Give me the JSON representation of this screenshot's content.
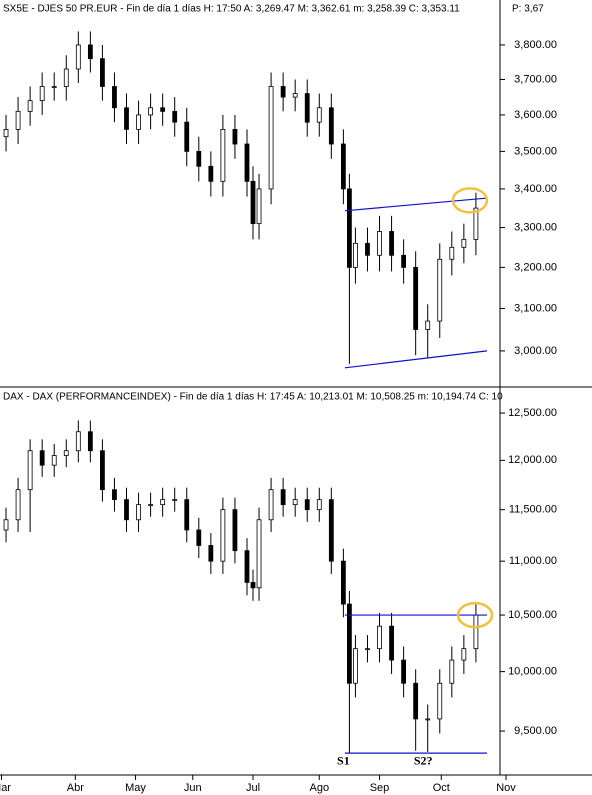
{
  "chart_data": [
    {
      "type": "candlestick",
      "header": "SX5E - DJES 50 PR.EUR - Fin de día 1 días  H: 17:50  A: 3,269.47  M: 3,362.61  m: 3,258.39  C: 3,353.11",
      "header_extra": "P: 3,67",
      "log_scale": true,
      "x": [
        2,
        6,
        10,
        14,
        18,
        22,
        26,
        30,
        34,
        38,
        42,
        46,
        50,
        54,
        58,
        62,
        66,
        70,
        74,
        78,
        82,
        84,
        86,
        90,
        94,
        98,
        102,
        106,
        110,
        114,
        116,
        118,
        122,
        126,
        130,
        134,
        138,
        142,
        146,
        150,
        154,
        158
      ],
      "open": [
        3540,
        3560,
        3610,
        3640,
        3680,
        3680,
        3730,
        3800,
        3760,
        3680,
        3620,
        3560,
        3600,
        3620,
        3610,
        3580,
        3500,
        3460,
        3420,
        3560,
        3520,
        3420,
        3310,
        3400,
        3680,
        3650,
        3660,
        3580,
        3620,
        3520,
        3400,
        3200,
        3260,
        3230,
        3290,
        3230,
        3200,
        3050,
        3070,
        3220,
        3250,
        3270
      ],
      "high": [
        3600,
        3650,
        3680,
        3720,
        3720,
        3770,
        3840,
        3840,
        3800,
        3720,
        3660,
        3640,
        3660,
        3660,
        3650,
        3620,
        3540,
        3500,
        3600,
        3600,
        3560,
        3460,
        3440,
        3720,
        3720,
        3700,
        3700,
        3660,
        3660,
        3560,
        3440,
        3300,
        3300,
        3330,
        3330,
        3270,
        3240,
        3110,
        3260,
        3290,
        3310,
        3390
      ],
      "low": [
        3500,
        3520,
        3570,
        3600,
        3640,
        3640,
        3690,
        3720,
        3640,
        3580,
        3520,
        3520,
        3560,
        3570,
        3540,
        3460,
        3420,
        3380,
        3380,
        3480,
        3380,
        3270,
        3270,
        3360,
        3610,
        3610,
        3540,
        3540,
        3480,
        3360,
        2970,
        3160,
        3190,
        3190,
        3190,
        3160,
        2990,
        2985,
        3030,
        3180,
        3210,
        3230
      ],
      "close": [
        3560,
        3610,
        3640,
        3680,
        3680,
        3730,
        3800,
        3760,
        3680,
        3620,
        3560,
        3600,
        3620,
        3610,
        3580,
        3500,
        3460,
        3420,
        3560,
        3520,
        3420,
        3310,
        3400,
        3680,
        3650,
        3660,
        3580,
        3620,
        3520,
        3400,
        3200,
        3260,
        3230,
        3290,
        3230,
        3200,
        3050,
        3070,
        3220,
        3250,
        3270,
        3350
      ],
      "xlim": [
        0,
        166
      ],
      "ylim": [
        2922,
        3880
      ],
      "yticks": [
        {
          "value": 3000,
          "label": "3,000.00"
        },
        {
          "value": 3100,
          "label": "3,100.00"
        },
        {
          "value": 3200,
          "label": "3,200.00"
        },
        {
          "value": 3300,
          "label": "3,300.00"
        },
        {
          "value": 3400,
          "label": "3,400.00"
        },
        {
          "value": 3500,
          "label": "3,500.00"
        },
        {
          "value": 3600,
          "label": "3,600.00"
        },
        {
          "value": 3700,
          "label": "3,700.00"
        },
        {
          "value": 3800,
          "label": "3,800.00"
        }
      ],
      "line_color": "#1010c8",
      "lines": [
        {
          "x": [
            114.5,
            161.7
          ],
          "y": [
            3343,
            3376
          ]
        },
        {
          "x": [
            114.5,
            161.7
          ],
          "y": [
            2961,
            3000
          ]
        }
      ],
      "highlight": {
        "x": 156,
        "y": 3370,
        "color": "#f0c040"
      }
    },
    {
      "type": "candlestick",
      "header": "DAX - DAX (PERFORMANCEINDEX) - Fin de día 1 días  H: 17:45  A: 10,213.01  M: 10,508.25  m: 10,194.74  C: 10",
      "log_scale": true,
      "x": [
        2,
        6,
        10,
        14,
        18,
        22,
        26,
        30,
        34,
        38,
        42,
        46,
        50,
        54,
        58,
        62,
        66,
        70,
        74,
        78,
        82,
        84,
        86,
        90,
        94,
        98,
        102,
        106,
        110,
        114,
        116,
        118,
        122,
        126,
        130,
        134,
        138,
        142,
        146,
        150,
        154,
        158
      ],
      "open": [
        11300,
        11400,
        11700,
        12100,
        11950,
        12050,
        12100,
        12300,
        12100,
        11700,
        11600,
        11400,
        11550,
        11550,
        11600,
        11600,
        11300,
        11150,
        11000,
        11500,
        11100,
        10800,
        10750,
        11400,
        11700,
        11550,
        11600,
        11500,
        11600,
        11000,
        10600,
        9900,
        10200,
        10200,
        10400,
        10100,
        9900,
        9600,
        9600,
        9900,
        10100,
        10200
      ],
      "high": [
        11520,
        11820,
        12220,
        12220,
        12170,
        12220,
        12420,
        12420,
        12220,
        11820,
        11720,
        11670,
        11670,
        11720,
        11720,
        11720,
        11420,
        11270,
        11620,
        11620,
        11220,
        10920,
        11520,
        11820,
        11820,
        11720,
        11720,
        11720,
        11720,
        11120,
        10720,
        10320,
        10320,
        10520,
        10520,
        10220,
        10020,
        9720,
        10020,
        10220,
        10320,
        10620
      ],
      "low": [
        11180,
        11280,
        11280,
        11830,
        11830,
        11930,
        11980,
        11980,
        11580,
        11480,
        11280,
        11280,
        11430,
        11430,
        11480,
        11180,
        11030,
        10880,
        10880,
        10980,
        10680,
        10630,
        10630,
        11280,
        11430,
        11430,
        11380,
        11380,
        10880,
        10480,
        9320,
        9780,
        10080,
        10080,
        9980,
        9780,
        9340,
        9330,
        9480,
        9780,
        9980,
        10080
      ],
      "close": [
        11400,
        11700,
        12100,
        11950,
        12050,
        12100,
        12300,
        12100,
        11700,
        11600,
        11400,
        11550,
        11550,
        11600,
        11600,
        11300,
        11150,
        11000,
        11500,
        11100,
        10800,
        10750,
        11400,
        11700,
        11550,
        11600,
        11500,
        11600,
        11000,
        10600,
        9900,
        10200,
        10200,
        10400,
        10100,
        9900,
        9600,
        9600,
        9900,
        10100,
        10200,
        10500
      ],
      "xlim": [
        0,
        166
      ],
      "xticks": [
        {
          "value": 0.5,
          "label": "Mar"
        },
        {
          "value": 25,
          "label": "Abr"
        },
        {
          "value": 45,
          "label": "May"
        },
        {
          "value": 64,
          "label": "Jun"
        },
        {
          "value": 84,
          "label": "Jul"
        },
        {
          "value": 106,
          "label": "Ago"
        },
        {
          "value": 126,
          "label": "Sep"
        },
        {
          "value": 146.5,
          "label": "Oct"
        },
        {
          "value": 168,
          "label": "Nov"
        }
      ],
      "ylim": [
        9186,
        12587
      ],
      "yticks": [
        {
          "value": 9500,
          "label": "9,500.00"
        },
        {
          "value": 10000,
          "label": "10,000.00"
        },
        {
          "value": 10500,
          "label": "10,500.00"
        },
        {
          "value": 11000,
          "label": "11,000.00"
        },
        {
          "value": 11500,
          "label": "11,500.00"
        },
        {
          "value": 12000,
          "label": "12,000.00"
        },
        {
          "value": 12500,
          "label": "12,500.00"
        }
      ],
      "line_color": "#1010c8",
      "lines": [
        {
          "x": [
            114.5,
            161.7
          ],
          "y": [
            10500,
            10500
          ]
        },
        {
          "x": [
            114.5,
            161.7
          ],
          "y": [
            9321,
            9321
          ]
        }
      ],
      "highlight": {
        "x": 157.7,
        "y": 10500,
        "color": "#f0c040"
      },
      "annotations": [
        {
          "text": "S1",
          "x": 114,
          "y": 9250
        },
        {
          "text": "S2?",
          "x": 140.5,
          "y": 9250
        }
      ]
    }
  ]
}
